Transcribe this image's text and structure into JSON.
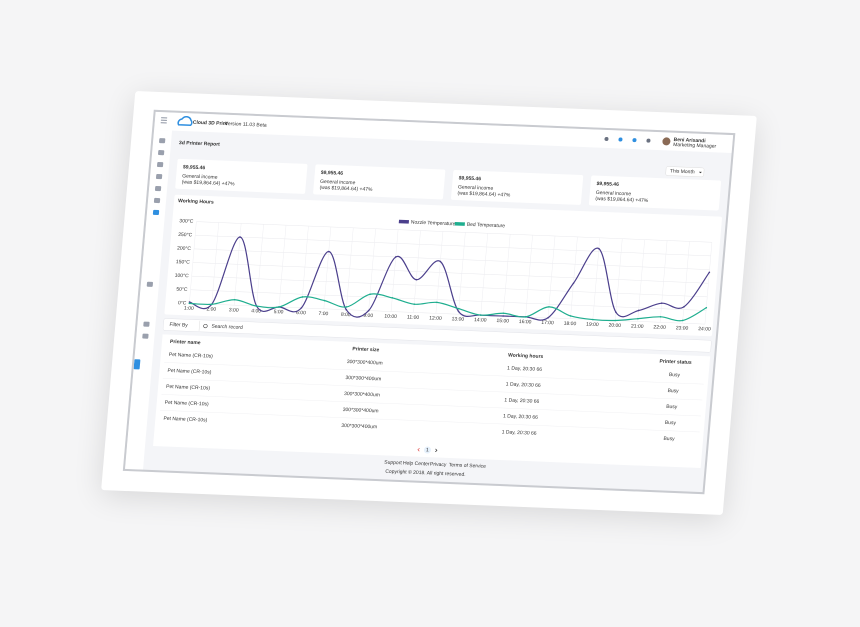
{
  "header": {
    "logo": "Cloud 3D Print",
    "version": "Version 11.03 Beta",
    "user_name": "Beni Arisandi",
    "user_role": "Marketing Manager"
  },
  "page_title": "3d Printer Report",
  "period": "This Month",
  "cards": [
    {
      "amount": "$9,955.46",
      "label": "General income",
      "note": "(was $19,864.64) +47%"
    },
    {
      "amount": "$9,955.46",
      "label": "General income",
      "note": "(was $19,864.64) +47%"
    },
    {
      "amount": "$9,955.46",
      "label": "General income",
      "note": "(was $19,864.64) +47%"
    },
    {
      "amount": "$9,955.46",
      "label": "General income",
      "note": "(was $19,864.64) +47%"
    }
  ],
  "chart": {
    "type": "line",
    "title": "Working Hours",
    "x": [
      "1:00",
      "2:00",
      "3:00",
      "4:00",
      "5:00",
      "6:00",
      "7:00",
      "8:00",
      "9:00",
      "10:00",
      "11:00",
      "12:00",
      "13:00",
      "14:00",
      "15:00",
      "16:00",
      "17:00",
      "18:00",
      "19:00",
      "20:00",
      "21:00",
      "22:00",
      "23:00",
      "24:00"
    ],
    "series": [
      {
        "name": "Nozzle Temperature",
        "color": "#4b3f8c",
        "values": [
          5,
          0,
          250,
          0,
          0,
          0,
          210,
          0,
          0,
          200,
          120,
          190,
          10,
          0,
          0,
          0,
          0,
          130,
          260,
          30,
          40,
          70,
          60,
          190
        ]
      },
      {
        "name": "Bed Temperature",
        "color": "#1fae8f",
        "values": [
          0,
          0,
          20,
          0,
          0,
          40,
          30,
          10,
          60,
          50,
          30,
          40,
          20,
          0,
          10,
          0,
          40,
          10,
          0,
          0,
          10,
          20,
          10,
          60
        ]
      }
    ],
    "ylim": [
      0,
      300
    ],
    "yticks": [
      {
        "value": 0,
        "label": "0°C"
      },
      {
        "value": 50,
        "label": "50°C"
      },
      {
        "value": 100,
        "label": "100°C"
      },
      {
        "value": 150,
        "label": "150°C"
      },
      {
        "value": 200,
        "label": "200°C"
      },
      {
        "value": 250,
        "label": "250°C"
      },
      {
        "value": 300,
        "label": "300°C"
      }
    ],
    "grid": true
  },
  "filter": {
    "label": "Filter By",
    "search_placeholder": "Search record"
  },
  "table": {
    "columns": [
      "Printer name",
      "Printer size",
      "Working hours",
      "Printer status"
    ],
    "rows": [
      [
        "Pet Name (CR-10s)",
        "300*300*400um",
        "1 Day, 20:30 66",
        "Busy"
      ],
      [
        "Pet Name (CR-10s)",
        "300*300*400um",
        "1 Day, 20:30 66",
        "Busy"
      ],
      [
        "Pet Name (CR-10s)",
        "300*300*400um",
        "1 Day, 20:30 66",
        "Busy"
      ],
      [
        "Pet Name (CR-10s)",
        "300*300*400um",
        "1 Day, 20:30 66",
        "Busy"
      ],
      [
        "Pet Name (CR-10s)",
        "300*300*400um",
        "1 Day, 20:30 66",
        "Busy"
      ]
    ]
  },
  "pagination": {
    "current": 1
  },
  "footer": {
    "links": [
      "Support",
      "Help Center",
      "Privacy",
      "Terms of Service"
    ],
    "copyright": "Copyright © 2018. All right reserved."
  }
}
